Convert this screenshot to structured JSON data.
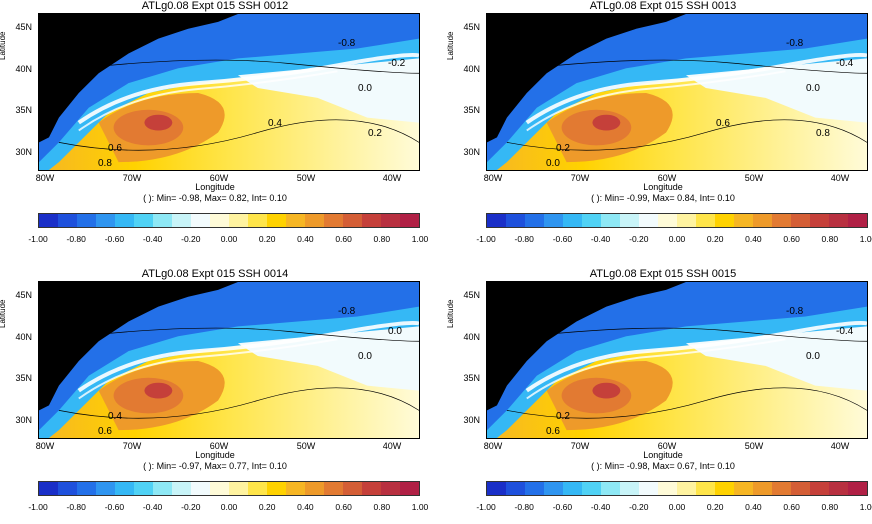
{
  "panels": [
    {
      "title": "ATLg0.08 Expt 015 SSH  0012",
      "stats": "( ): Min= -0.98, Max= 0.82, Int= 0.10",
      "contour_labels": [
        "-0.8",
        "-0.2",
        "0.0",
        "0.6",
        "0.8",
        "0.4",
        "0.2"
      ]
    },
    {
      "title": "ATLg0.08 Expt 015 SSH  0013",
      "stats": "( ): Min= -0.99, Max= 0.84, Int= 0.10",
      "contour_labels": [
        "-0.8",
        "-0.4",
        "0.0",
        "0.2",
        "0.0",
        "0.6",
        "0.8"
      ]
    },
    {
      "title": "ATLg0.08 Expt 015 SSH  0014",
      "stats": "( ): Min= -0.97, Max= 0.77, Int= 0.10",
      "contour_labels": [
        "-0.8",
        "0.0",
        "0.0",
        "0.4",
        "0.6"
      ]
    },
    {
      "title": "ATLg0.08 Expt 015 SSH  0015",
      "stats": "( ): Min= -0.98, Max= 0.67, Int= 0.10",
      "contour_labels": [
        "-0.8",
        "-0.4",
        "0.0",
        "0.2",
        "0.6"
      ]
    }
  ],
  "axes": {
    "ylabel": "Latitude",
    "xlabel": "Longitude",
    "yticks": [
      "45N",
      "40N",
      "35N",
      "30N"
    ],
    "xticks": [
      "80W",
      "70W",
      "60W",
      "50W",
      "40W"
    ]
  },
  "colorbar": {
    "ticks": [
      "-1.00",
      "-0.80",
      "-0.60",
      "-0.40",
      "-0.20",
      "0.00",
      "0.20",
      "0.40",
      "0.60",
      "0.80",
      "1.00"
    ],
    "colors": [
      "#1a2fc8",
      "#1e50dc",
      "#2370e8",
      "#2f95f0",
      "#35b8f5",
      "#50d2f5",
      "#8ee8f5",
      "#c8f4f8",
      "#f2fbfd",
      "#fffbd8",
      "#fff3a0",
      "#ffe54a",
      "#ffd200",
      "#f6b624",
      "#ee9a2a",
      "#e27a32",
      "#d45e36",
      "#c5403a",
      "#b83040",
      "#b02045"
    ]
  },
  "colors": {
    "land": "#000000"
  }
}
